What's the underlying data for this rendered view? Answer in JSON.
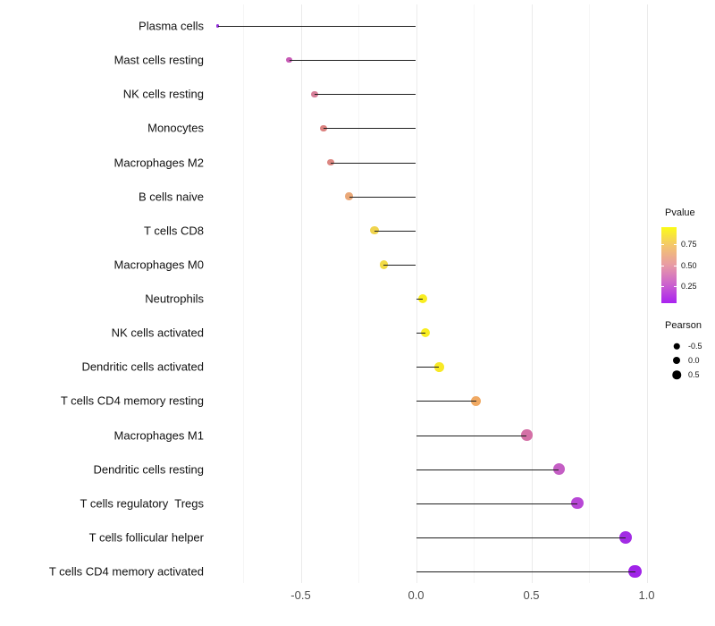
{
  "chart_data": {
    "type": "scatter",
    "variant": "lollipop",
    "orientation": "horizontal",
    "title": "",
    "xlabel": "",
    "ylabel": "",
    "x_axis": {
      "tick_labels": [
        "-0.5",
        "0.0",
        "0.5",
        "1.0"
      ],
      "tick_values": [
        -0.5,
        0.0,
        0.5,
        1.0
      ],
      "minor_tick_values": [
        -0.75,
        -0.25,
        0.25,
        0.75
      ],
      "range": [
        -0.89,
        1.03
      ],
      "grid": true
    },
    "points": [
      {
        "label": "Plasma cells",
        "pearson": -0.86,
        "color": "#9430DC"
      },
      {
        "label": "Mast cells resting",
        "pearson": -0.55,
        "color": "#C75AB5"
      },
      {
        "label": "NK cells resting",
        "pearson": -0.44,
        "color": "#D67E98"
      },
      {
        "label": "Monocytes",
        "pearson": -0.4,
        "color": "#DB827F"
      },
      {
        "label": "Macrophages M2",
        "pearson": -0.37,
        "color": "#DC8782"
      },
      {
        "label": "B cells naive",
        "pearson": -0.29,
        "color": "#EAA878"
      },
      {
        "label": "T cells CD8",
        "pearson": -0.18,
        "color": "#F0D44E"
      },
      {
        "label": "Macrophages M0",
        "pearson": -0.14,
        "color": "#F2DB45"
      },
      {
        "label": "Neutrophils",
        "pearson": 0.03,
        "color": "#F8ED21"
      },
      {
        "label": "NK cells activated",
        "pearson": 0.04,
        "color": "#F8ED21"
      },
      {
        "label": "Dendritic cells activated",
        "pearson": 0.1,
        "color": "#F8E926"
      },
      {
        "label": "T cells CD4 memory resting",
        "pearson": 0.26,
        "color": "#F0A963"
      },
      {
        "label": "Macrophages M1",
        "pearson": 0.48,
        "color": "#D470A6"
      },
      {
        "label": "Dendritic cells resting",
        "pearson": 0.62,
        "color": "#C45EC4"
      },
      {
        "label": "T cells regulatory  Tregs",
        "pearson": 0.7,
        "color": "#B847D6"
      },
      {
        "label": "T cells follicular helper",
        "pearson": 0.91,
        "color": "#A22BE4"
      },
      {
        "label": "T cells CD4 memory activated",
        "pearson": 0.95,
        "color": "#A023E8"
      }
    ],
    "legend": {
      "pvalue": {
        "title": "Pvalue",
        "tick_labels": [
          "0.75",
          "0.50",
          "0.25"
        ],
        "tick_positions": [
          0.224,
          0.506,
          0.776
        ],
        "gradient_top_to_bottom": [
          "#FBFB17",
          "#F3C46F",
          "#E89BA5",
          "#CC63CD",
          "#A922F0"
        ]
      },
      "pearson": {
        "title": "Pearson",
        "items": [
          {
            "label": "-0.5",
            "size": 6.5
          },
          {
            "label": "0.0",
            "size": 8
          },
          {
            "label": "0.5",
            "size": 9.5
          }
        ],
        "dot_color": "#000000"
      }
    },
    "colors": {
      "stem": "#1F1F1F",
      "grid_major": "#EBEBEB",
      "grid_minor": "#F6F6F6",
      "axis_text": "#4D4D4D",
      "label_text": "#111111",
      "background": "#FFFFFF"
    }
  }
}
